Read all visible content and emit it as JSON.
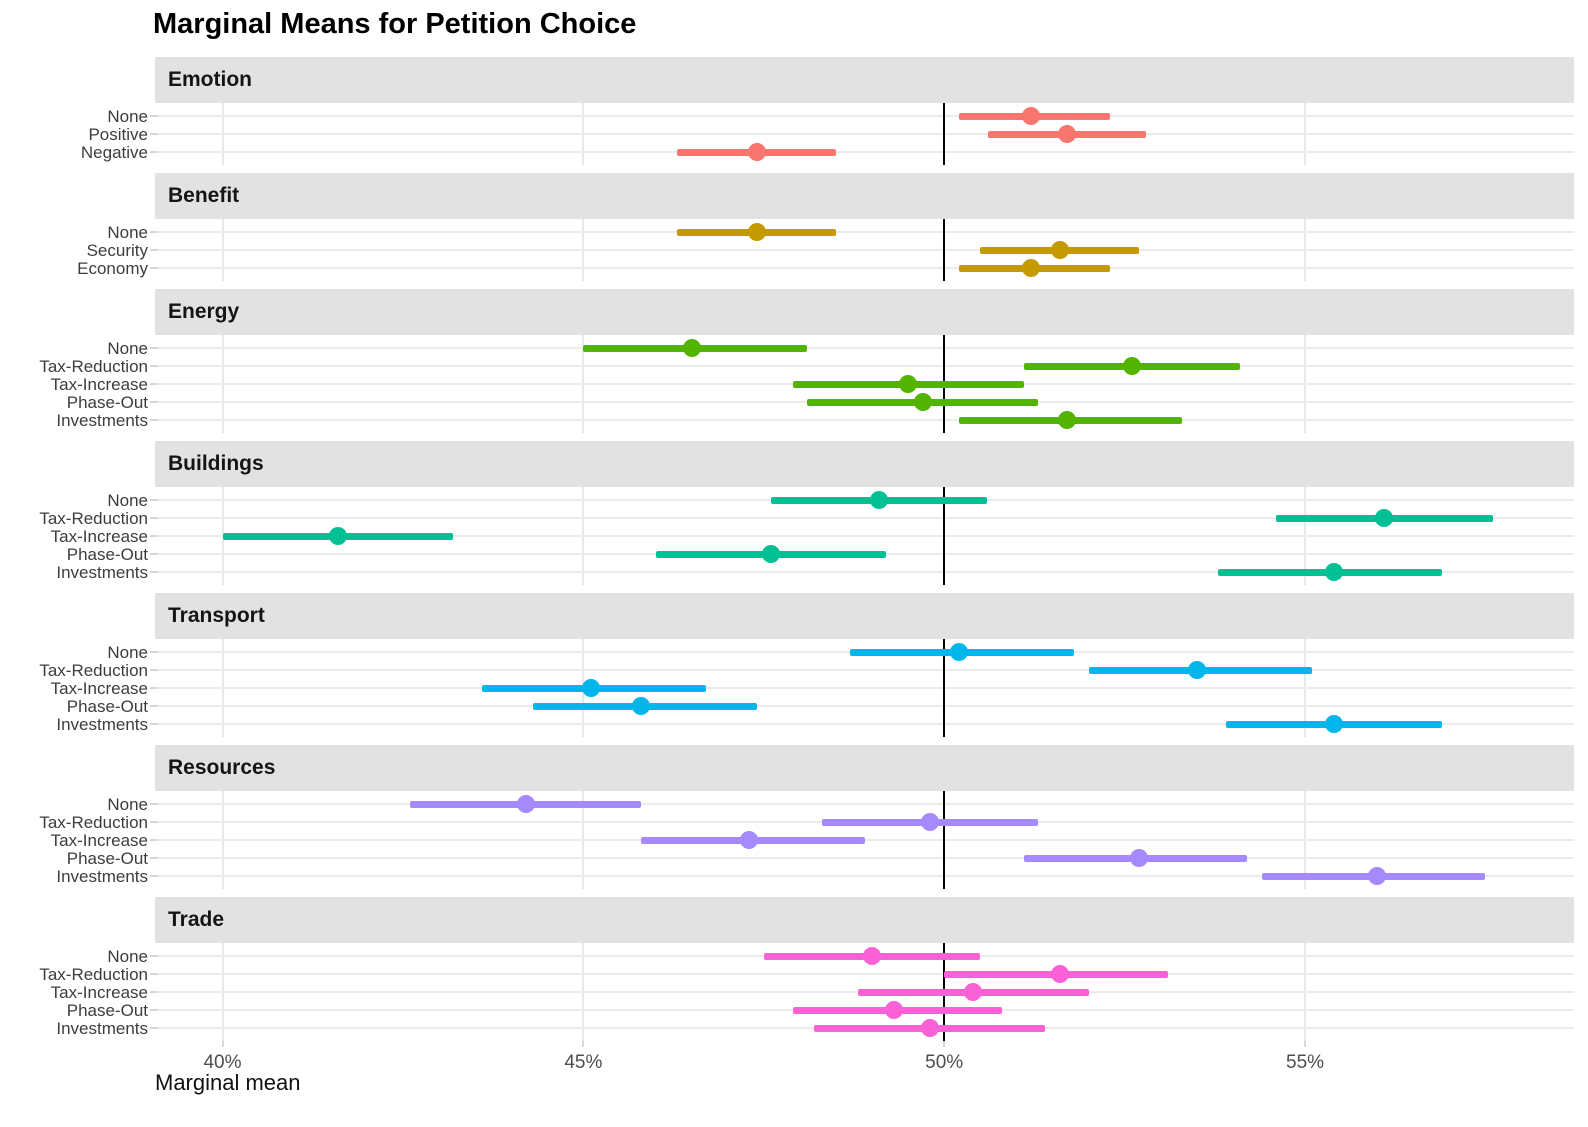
{
  "title": "Marginal Means for Petition Choice",
  "x_axis_title": "Marginal mean",
  "colors": {
    "strip_background": "#e2e2e2",
    "gridline": "#ebebeb",
    "reference_line": "#000000",
    "axis_text": "#4d4d4d",
    "category_text": "#3d3d3d"
  },
  "chart_data": {
    "type": "scatter",
    "subtype": "dot-and-ci-forest-plot",
    "title": "Marginal Means for Petition Choice",
    "xlabel": "Marginal mean",
    "ylabel": "",
    "xlim": [
      39.1,
      58.8
    ],
    "x_ticks": [
      40,
      45,
      50,
      55
    ],
    "x_tick_labels": [
      "40%",
      "45%",
      "50%",
      "55%"
    ],
    "reference_line_x": 50,
    "grid": "major-only",
    "legend": "none",
    "units": "percent",
    "facets": [
      {
        "label": "Emotion",
        "color": "#F8766D",
        "rows": [
          {
            "category": "None",
            "mean": 51.2,
            "ci_low": 50.2,
            "ci_high": 52.3
          },
          {
            "category": "Positive",
            "mean": 51.7,
            "ci_low": 50.6,
            "ci_high": 52.8
          },
          {
            "category": "Negative",
            "mean": 47.4,
            "ci_low": 46.3,
            "ci_high": 48.5
          }
        ]
      },
      {
        "label": "Benefit",
        "color": "#C49A00",
        "rows": [
          {
            "category": "None",
            "mean": 47.4,
            "ci_low": 46.3,
            "ci_high": 48.5
          },
          {
            "category": "Security",
            "mean": 51.6,
            "ci_low": 50.5,
            "ci_high": 52.7
          },
          {
            "category": "Economy",
            "mean": 51.2,
            "ci_low": 50.2,
            "ci_high": 52.3
          }
        ]
      },
      {
        "label": "Energy",
        "color": "#53B400",
        "rows": [
          {
            "category": "None",
            "mean": 46.5,
            "ci_low": 45.0,
            "ci_high": 48.1
          },
          {
            "category": "Tax-Reduction",
            "mean": 52.6,
            "ci_low": 51.1,
            "ci_high": 54.1
          },
          {
            "category": "Tax-Increase",
            "mean": 49.5,
            "ci_low": 47.9,
            "ci_high": 51.1
          },
          {
            "category": "Phase-Out",
            "mean": 49.7,
            "ci_low": 48.1,
            "ci_high": 51.3
          },
          {
            "category": "Investments",
            "mean": 51.7,
            "ci_low": 50.2,
            "ci_high": 53.3
          }
        ]
      },
      {
        "label": "Buildings",
        "color": "#00C094",
        "rows": [
          {
            "category": "None",
            "mean": 49.1,
            "ci_low": 47.6,
            "ci_high": 50.6
          },
          {
            "category": "Tax-Reduction",
            "mean": 56.1,
            "ci_low": 54.6,
            "ci_high": 57.6
          },
          {
            "category": "Tax-Increase",
            "mean": 41.6,
            "ci_low": 40.0,
            "ci_high": 43.2
          },
          {
            "category": "Phase-Out",
            "mean": 47.6,
            "ci_low": 46.0,
            "ci_high": 49.2
          },
          {
            "category": "Investments",
            "mean": 55.4,
            "ci_low": 53.8,
            "ci_high": 56.9
          }
        ]
      },
      {
        "label": "Transport",
        "color": "#00B6EB",
        "rows": [
          {
            "category": "None",
            "mean": 50.2,
            "ci_low": 48.7,
            "ci_high": 51.8
          },
          {
            "category": "Tax-Reduction",
            "mean": 53.5,
            "ci_low": 52.0,
            "ci_high": 55.1
          },
          {
            "category": "Tax-Increase",
            "mean": 45.1,
            "ci_low": 43.6,
            "ci_high": 46.7
          },
          {
            "category": "Phase-Out",
            "mean": 45.8,
            "ci_low": 44.3,
            "ci_high": 47.4
          },
          {
            "category": "Investments",
            "mean": 55.4,
            "ci_low": 53.9,
            "ci_high": 56.9
          }
        ]
      },
      {
        "label": "Resources",
        "color": "#A58AFF",
        "rows": [
          {
            "category": "None",
            "mean": 44.2,
            "ci_low": 42.6,
            "ci_high": 45.8
          },
          {
            "category": "Tax-Reduction",
            "mean": 49.8,
            "ci_low": 48.3,
            "ci_high": 51.3
          },
          {
            "category": "Tax-Increase",
            "mean": 47.3,
            "ci_low": 45.8,
            "ci_high": 48.9
          },
          {
            "category": "Phase-Out",
            "mean": 52.7,
            "ci_low": 51.1,
            "ci_high": 54.2
          },
          {
            "category": "Investments",
            "mean": 56.0,
            "ci_low": 54.4,
            "ci_high": 57.5
          }
        ]
      },
      {
        "label": "Trade",
        "color": "#FB61D7",
        "rows": [
          {
            "category": "None",
            "mean": 49.0,
            "ci_low": 47.5,
            "ci_high": 50.5
          },
          {
            "category": "Tax-Reduction",
            "mean": 51.6,
            "ci_low": 50.0,
            "ci_high": 53.1
          },
          {
            "category": "Tax-Increase",
            "mean": 50.4,
            "ci_low": 48.8,
            "ci_high": 52.0
          },
          {
            "category": "Phase-Out",
            "mean": 49.3,
            "ci_low": 47.9,
            "ci_high": 50.8
          },
          {
            "category": "Investments",
            "mean": 49.8,
            "ci_low": 48.2,
            "ci_high": 51.4
          }
        ]
      }
    ]
  }
}
